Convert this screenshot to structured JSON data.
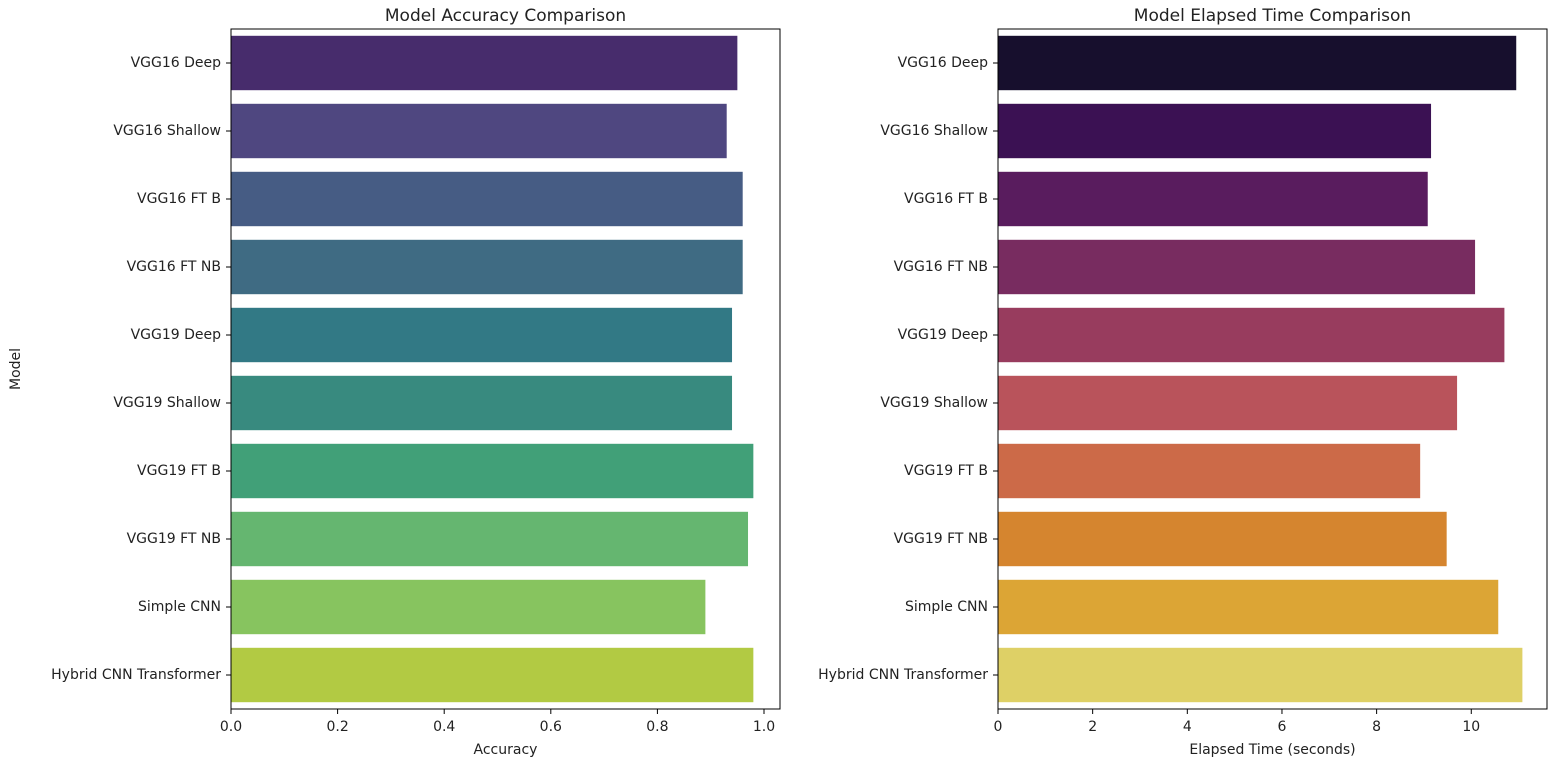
{
  "chart_data": [
    {
      "type": "bar",
      "orientation": "horizontal",
      "title": "Model Accuracy Comparison",
      "xlabel": "Accuracy",
      "ylabel": "Model",
      "categories": [
        "VGG16 Deep",
        "VGG16 Shallow",
        "VGG16 FT B",
        "VGG16 FT NB",
        "VGG19 Deep",
        "VGG19 Shallow",
        "VGG19 FT B",
        "VGG19 FT NB",
        "Simple CNN",
        "Hybrid CNN Transformer"
      ],
      "values": [
        0.95,
        0.93,
        0.96,
        0.96,
        0.94,
        0.94,
        0.98,
        0.97,
        0.89,
        0.98
      ],
      "xlim": [
        0,
        1.03
      ],
      "xticks": [
        0.0,
        0.2,
        0.4,
        0.6,
        0.8,
        1.0
      ],
      "xtick_labels": [
        "0.0",
        "0.2",
        "0.4",
        "0.6",
        "0.8",
        "1.0"
      ],
      "palette": "viridis",
      "colors": [
        "#472c6c",
        "#4f4780",
        "#465c84",
        "#3f6b83",
        "#327985",
        "#388a7f",
        "#41a078",
        "#65b670",
        "#87c45f",
        "#b2ca43"
      ],
      "grid": false,
      "legend": "none"
    },
    {
      "type": "bar",
      "orientation": "horizontal",
      "title": "Model Elapsed Time Comparison",
      "xlabel": "Elapsed Time (seconds)",
      "ylabel": "",
      "categories": [
        "VGG16 Deep",
        "VGG16 Shallow",
        "VGG16 FT B",
        "VGG16 FT NB",
        "VGG19 Deep",
        "VGG19 Shallow",
        "VGG19 FT B",
        "VGG19 FT NB",
        "Simple CNN",
        "Hybrid CNN Transformer"
      ],
      "values": [
        10.95,
        9.15,
        9.08,
        10.08,
        10.7,
        9.7,
        8.92,
        9.48,
        10.57,
        11.08
      ],
      "xlim": [
        0,
        11.6
      ],
      "xticks": [
        0,
        2,
        4,
        6,
        8,
        10
      ],
      "xtick_labels": [
        "0",
        "2",
        "4",
        "6",
        "8",
        "10"
      ],
      "palette": "inferno",
      "colors": [
        "#170f2d",
        "#3b1153",
        "#591c5e",
        "#782c60",
        "#983c5e",
        "#b9535b",
        "#cc6a48",
        "#d5852f",
        "#dca535",
        "#ded066"
      ],
      "grid": false,
      "legend": "none"
    }
  ]
}
